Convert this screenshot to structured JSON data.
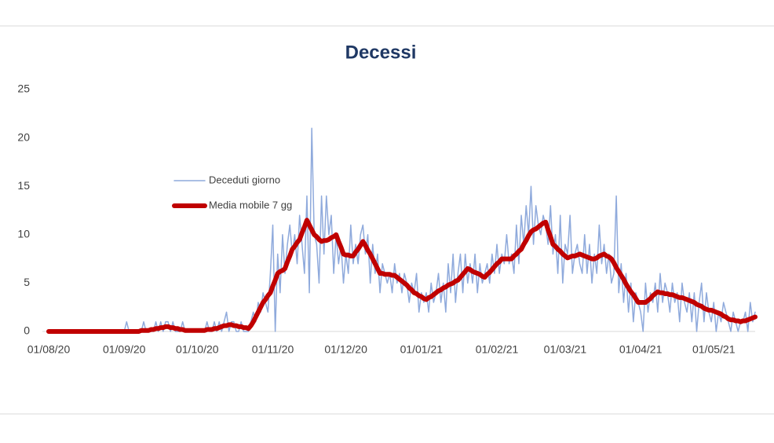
{
  "chart_data": {
    "type": "line",
    "title": "Decessi",
    "categories": [
      "01/08/20",
      null,
      null,
      null,
      null,
      null,
      null,
      null,
      null,
      null,
      null,
      null,
      null,
      null,
      null,
      null,
      null,
      null,
      null,
      null,
      null,
      null,
      null,
      null,
      null,
      null,
      null,
      null,
      null,
      null,
      null,
      "01/09/20",
      null,
      null,
      null,
      null,
      null,
      null,
      null,
      null,
      null,
      null,
      null,
      null,
      null,
      null,
      null,
      null,
      null,
      null,
      null,
      null,
      null,
      null,
      null,
      null,
      null,
      null,
      null,
      null,
      null,
      "01/10/20",
      null,
      null,
      null,
      null,
      null,
      null,
      null,
      null,
      null,
      null,
      null,
      null,
      null,
      null,
      null,
      null,
      null,
      null,
      null,
      null,
      null,
      null,
      null,
      null,
      null,
      null,
      null,
      null,
      null,
      null,
      "01/11/20",
      null,
      null,
      null,
      null,
      null,
      null,
      null,
      null,
      null,
      null,
      null,
      null,
      null,
      null,
      null,
      null,
      null,
      null,
      null,
      null,
      null,
      null,
      null,
      null,
      null,
      null,
      null,
      null,
      null,
      "01/12/20",
      null,
      null,
      null,
      null,
      null,
      null,
      null,
      null,
      null,
      null,
      null,
      null,
      null,
      null,
      null,
      null,
      null,
      null,
      null,
      null,
      null,
      null,
      null,
      null,
      null,
      null,
      null,
      null,
      null,
      null,
      "01/01/21",
      null,
      null,
      null,
      null,
      null,
      null,
      null,
      null,
      null,
      null,
      null,
      null,
      null,
      null,
      null,
      null,
      null,
      null,
      null,
      null,
      null,
      null,
      null,
      null,
      null,
      null,
      null,
      null,
      null,
      null,
      "01/02/21",
      null,
      null,
      null,
      null,
      null,
      null,
      null,
      null,
      null,
      null,
      null,
      null,
      null,
      null,
      null,
      null,
      null,
      null,
      null,
      null,
      null,
      null,
      null,
      null,
      null,
      null,
      null,
      "01/03/21",
      null,
      null,
      null,
      null,
      null,
      null,
      null,
      null,
      null,
      null,
      null,
      null,
      null,
      null,
      null,
      null,
      null,
      null,
      null,
      null,
      null,
      null,
      null,
      null,
      null,
      null,
      null,
      null,
      null,
      null,
      "01/04/21",
      null,
      null,
      null,
      null,
      null,
      null,
      null,
      null,
      null,
      null,
      null,
      null,
      null,
      null,
      null,
      null,
      null,
      null,
      null,
      null,
      null,
      null,
      null,
      null,
      null,
      null,
      null,
      null,
      null,
      "01/05/21",
      null,
      null,
      null,
      null,
      null,
      null,
      null,
      null,
      null,
      null,
      null,
      null,
      null,
      null,
      null,
      null,
      null
    ],
    "series": [
      {
        "name": "Deceduti giorno",
        "color": "#8faadc",
        "values": [
          0,
          0,
          0,
          0,
          0,
          0,
          0,
          0,
          0,
          0,
          0,
          0,
          0,
          0,
          0,
          0,
          0,
          0,
          0,
          0,
          0,
          0,
          0,
          0,
          0,
          0,
          0,
          0,
          0,
          0,
          0,
          0,
          1,
          0,
          0,
          0,
          0,
          0,
          0,
          1,
          0,
          0,
          0,
          0,
          1,
          0,
          1,
          0,
          1,
          1,
          0,
          1,
          0,
          0,
          0,
          1,
          0,
          0,
          0,
          0,
          0,
          0,
          0,
          0,
          0,
          1,
          0,
          0,
          1,
          0,
          1,
          0,
          1,
          2,
          0,
          1,
          1,
          0,
          0,
          1,
          0,
          0,
          0,
          1,
          2,
          1,
          3,
          2,
          4,
          3,
          2,
          6,
          11,
          0,
          8,
          4,
          10,
          6,
          9,
          11,
          8,
          10,
          7,
          12,
          9,
          6,
          14,
          4,
          21,
          10,
          9,
          5,
          14,
          8,
          14,
          10,
          12,
          6,
          10,
          7,
          9,
          5,
          8,
          6,
          11,
          7,
          9,
          7,
          10,
          11,
          8,
          10,
          5,
          9,
          6,
          8,
          4,
          7,
          6,
          5,
          6,
          4,
          7,
          5,
          6,
          4,
          6,
          5,
          3,
          5,
          4,
          6,
          2,
          4,
          3,
          4,
          2,
          5,
          3,
          4,
          6,
          3,
          5,
          2,
          7,
          4,
          8,
          3,
          6,
          8,
          4,
          8,
          5,
          7,
          5,
          8,
          4,
          7,
          5,
          6,
          7,
          5,
          8,
          6,
          9,
          6,
          8,
          7,
          10,
          7,
          8,
          6,
          11,
          7,
          12,
          9,
          13,
          10,
          15,
          9,
          13,
          11,
          10,
          12,
          11,
          9,
          13,
          8,
          10,
          6,
          12,
          5,
          9,
          8,
          12,
          6,
          8,
          9,
          7,
          6,
          10,
          6,
          9,
          5,
          8,
          6,
          11,
          7,
          9,
          6,
          8,
          5,
          6,
          14,
          4,
          7,
          3,
          6,
          2,
          5,
          1,
          4,
          3,
          2,
          0,
          5,
          2,
          4,
          3,
          5,
          2,
          6,
          3,
          5,
          4,
          2,
          5,
          3,
          4,
          1,
          5,
          3,
          2,
          4,
          1,
          4,
          0,
          3,
          5,
          1,
          4,
          2,
          1,
          3,
          0,
          2,
          1,
          3,
          2,
          1,
          0,
          2,
          1,
          0,
          1,
          1,
          2,
          0,
          3,
          1,
          2
        ]
      },
      {
        "name": "Media mobile 7 gg",
        "color": "#c00000",
        "values": [
          0,
          0,
          0,
          0,
          0,
          0,
          0,
          0,
          0,
          0,
          0,
          0,
          0,
          0,
          0,
          0,
          0,
          0,
          0,
          0,
          0,
          0,
          0,
          0,
          0,
          0,
          0,
          0,
          0,
          0,
          0,
          0,
          0,
          0,
          0,
          0,
          0,
          0,
          0.1,
          0.1,
          0.1,
          0.1,
          0.2,
          0.2,
          0.3,
          0.3,
          0.4,
          0.4,
          0.5,
          0.5,
          0.4,
          0.4,
          0.3,
          0.3,
          0.2,
          0.2,
          0.1,
          0.1,
          0.1,
          0.1,
          0.1,
          0.1,
          0.1,
          0.1,
          0.1,
          0.2,
          0.2,
          0.2,
          0.3,
          0.3,
          0.4,
          0.5,
          0.6,
          0.6,
          0.7,
          0.7,
          0.6,
          0.6,
          0.5,
          0.5,
          0.4,
          0.4,
          0.3,
          0.6,
          1,
          1.5,
          2,
          2.5,
          3,
          3.3,
          3.7,
          4,
          4.7,
          5.3,
          6,
          6.2,
          6.3,
          6.5,
          7.2,
          7.8,
          8.5,
          8.8,
          9.2,
          9.5,
          10.2,
          10.8,
          11.5,
          11,
          10.5,
          10,
          9.8,
          9.5,
          9.3,
          9.4,
          9.4,
          9.5,
          9.7,
          9.8,
          10,
          9.3,
          8.7,
          8,
          7.9,
          7.9,
          7.8,
          7.8,
          8.2,
          8.5,
          8.9,
          9.3,
          8.9,
          8.4,
          8,
          7.5,
          7,
          6.5,
          6,
          6,
          5.9,
          5.9,
          5.9,
          5.8,
          5.8,
          5.6,
          5.4,
          5.2,
          5,
          4.8,
          4.5,
          4.3,
          4,
          3.9,
          3.7,
          3.6,
          3.4,
          3.3,
          3.5,
          3.6,
          3.8,
          4,
          4.2,
          4.3,
          4.5,
          4.6,
          4.8,
          4.9,
          5,
          5.2,
          5.3,
          5.6,
          5.9,
          6.2,
          6.5,
          6.4,
          6.2,
          6.1,
          6,
          5.9,
          5.7,
          5.6,
          5.9,
          6.1,
          6.4,
          6.7,
          7,
          7.2,
          7.5,
          7.5,
          7.5,
          7.5,
          7.5,
          7.8,
          8,
          8.3,
          8.5,
          9,
          9.4,
          9.9,
          10.3,
          10.5,
          10.6,
          10.8,
          11,
          11.2,
          11.3,
          10.5,
          9.8,
          9,
          8.8,
          8.5,
          8.3,
          8,
          7.8,
          7.6,
          7.7,
          7.8,
          7.8,
          7.9,
          8,
          7.9,
          7.8,
          7.7,
          7.6,
          7.5,
          7.5,
          7.6,
          7.8,
          7.9,
          8,
          7.8,
          7.7,
          7.5,
          7.1,
          6.6,
          6.2,
          5.8,
          5.4,
          4.9,
          4.5,
          4.1,
          3.8,
          3.4,
          3,
          3,
          3,
          3,
          3.2,
          3.4,
          3.7,
          3.9,
          4.1,
          4,
          4,
          3.9,
          3.9,
          3.8,
          3.8,
          3.7,
          3.6,
          3.5,
          3.5,
          3.4,
          3.3,
          3.2,
          3.1,
          3,
          2.8,
          2.7,
          2.6,
          2.4,
          2.3,
          2.2,
          2.2,
          2.1,
          2,
          1.9,
          1.8,
          1.6,
          1.5,
          1.3,
          1.2,
          1.2,
          1.1,
          1.1,
          1,
          1.1,
          1.1,
          1.2,
          1.3,
          1.4,
          1.5
        ]
      }
    ],
    "ylim": [
      0,
      25
    ],
    "yticks": [
      0,
      5,
      10,
      15,
      20,
      25
    ]
  }
}
